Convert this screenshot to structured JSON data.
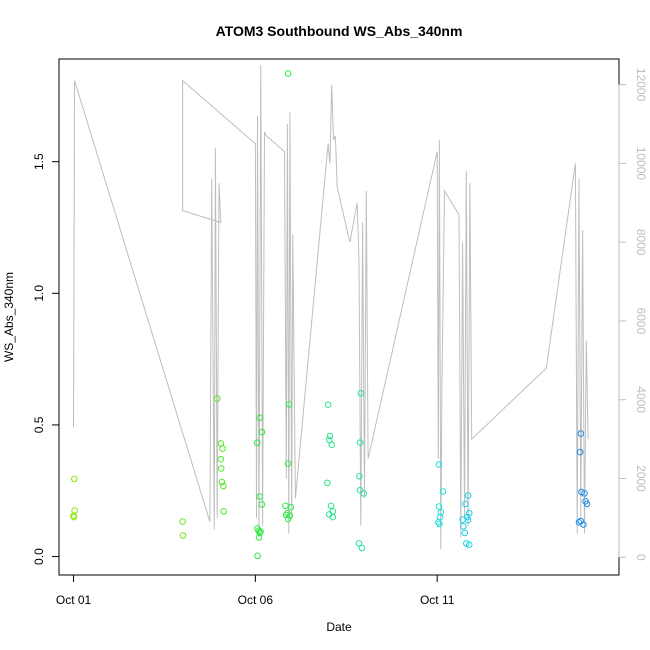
{
  "chart_data": {
    "type": "scatter",
    "title": "ATOM3 Southbound WS_Abs_340nm",
    "xlabel": "Date",
    "ylabel": "WS_Abs_340nm",
    "x_tick_labels": [
      "Oct 01",
      "Oct 06",
      "Oct 11"
    ],
    "x_tick_days": [
      1,
      6,
      11
    ],
    "xlim": [
      0.6,
      16.0
    ],
    "ylim": [
      -0.07,
      1.89
    ],
    "y_ticks": [
      0.0,
      0.5,
      1.0,
      1.5
    ],
    "y_tick_labels": [
      "0.0",
      "0.5",
      "1.0",
      "1.5"
    ],
    "y2lim": [
      -450,
      12650
    ],
    "y2_ticks": [
      0,
      2000,
      4000,
      6000,
      8000,
      10000,
      12000
    ],
    "y2_tick_labels": [
      "0",
      "2000",
      "4000",
      "6000",
      "8000",
      "10000",
      "12000"
    ],
    "colors": {
      "line": "#bebebe",
      "axis": "#000000",
      "right_axis": "#bebebe"
    },
    "points": [
      {
        "x": 1.02,
        "y": 0.295,
        "color": "#88e800"
      },
      {
        "x": 1.03,
        "y": 0.175,
        "color": "#88e800"
      },
      {
        "x": 1.0,
        "y": 0.155,
        "color": "#88e800"
      },
      {
        "x": 1.01,
        "y": 0.15,
        "color": "#88e800"
      },
      {
        "x": 4.0,
        "y": 0.133,
        "color": "#6fe61a"
      },
      {
        "x": 4.01,
        "y": 0.08,
        "color": "#6fe61a"
      },
      {
        "x": 4.95,
        "y": 0.6,
        "color": "#50e825"
      },
      {
        "x": 5.05,
        "y": 0.43,
        "color": "#50e825"
      },
      {
        "x": 5.1,
        "y": 0.41,
        "color": "#50e825"
      },
      {
        "x": 5.05,
        "y": 0.37,
        "color": "#50e825"
      },
      {
        "x": 5.06,
        "y": 0.335,
        "color": "#50e825"
      },
      {
        "x": 5.08,
        "y": 0.283,
        "color": "#50e825"
      },
      {
        "x": 5.12,
        "y": 0.268,
        "color": "#50e825"
      },
      {
        "x": 5.13,
        "y": 0.172,
        "color": "#50e825"
      },
      {
        "x": 6.05,
        "y": 0.432,
        "color": "#2fe842"
      },
      {
        "x": 6.12,
        "y": 0.527,
        "color": "#2fe842"
      },
      {
        "x": 6.18,
        "y": 0.473,
        "color": "#2fe842"
      },
      {
        "x": 6.12,
        "y": 0.228,
        "color": "#2fe842"
      },
      {
        "x": 6.18,
        "y": 0.198,
        "color": "#2fe842"
      },
      {
        "x": 6.06,
        "y": 0.107,
        "color": "#2fe842"
      },
      {
        "x": 6.09,
        "y": 0.098,
        "color": "#2fe842"
      },
      {
        "x": 6.12,
        "y": 0.09,
        "color": "#2fe842"
      },
      {
        "x": 6.14,
        "y": 0.095,
        "color": "#2fe842"
      },
      {
        "x": 6.1,
        "y": 0.073,
        "color": "#2fe842"
      },
      {
        "x": 6.06,
        "y": 0.003,
        "color": "#2fe842"
      },
      {
        "x": 6.9,
        "y": 1.835,
        "color": "#30e84e"
      },
      {
        "x": 6.93,
        "y": 0.578,
        "color": "#30e84e"
      },
      {
        "x": 6.9,
        "y": 0.353,
        "color": "#30e84e"
      },
      {
        "x": 6.83,
        "y": 0.193,
        "color": "#30e84e"
      },
      {
        "x": 6.98,
        "y": 0.188,
        "color": "#30e84e"
      },
      {
        "x": 6.88,
        "y": 0.165,
        "color": "#30e84e"
      },
      {
        "x": 6.85,
        "y": 0.158,
        "color": "#30e84e"
      },
      {
        "x": 6.95,
        "y": 0.155,
        "color": "#30e84e"
      },
      {
        "x": 6.9,
        "y": 0.143,
        "color": "#30e84e"
      },
      {
        "x": 8.0,
        "y": 0.577,
        "color": "#27e48a"
      },
      {
        "x": 8.05,
        "y": 0.458,
        "color": "#27e48a"
      },
      {
        "x": 8.03,
        "y": 0.443,
        "color": "#27e48a"
      },
      {
        "x": 8.1,
        "y": 0.425,
        "color": "#27e48a"
      },
      {
        "x": 7.98,
        "y": 0.28,
        "color": "#27e48a"
      },
      {
        "x": 8.08,
        "y": 0.193,
        "color": "#27e48a"
      },
      {
        "x": 8.13,
        "y": 0.172,
        "color": "#27e48a"
      },
      {
        "x": 8.03,
        "y": 0.16,
        "color": "#27e48a"
      },
      {
        "x": 8.13,
        "y": 0.15,
        "color": "#27e48a"
      },
      {
        "x": 8.9,
        "y": 0.62,
        "color": "#24e0a8"
      },
      {
        "x": 8.88,
        "y": 0.433,
        "color": "#24e0a8"
      },
      {
        "x": 8.86,
        "y": 0.305,
        "color": "#24e0a8"
      },
      {
        "x": 8.88,
        "y": 0.252,
        "color": "#24e0a8"
      },
      {
        "x": 8.98,
        "y": 0.24,
        "color": "#24e0a8"
      },
      {
        "x": 8.85,
        "y": 0.05,
        "color": "#24e0a8"
      },
      {
        "x": 8.93,
        "y": 0.033,
        "color": "#24e0a8"
      },
      {
        "x": 11.05,
        "y": 0.35,
        "color": "#1ae0d8"
      },
      {
        "x": 11.16,
        "y": 0.247,
        "color": "#1ae0d8"
      },
      {
        "x": 11.05,
        "y": 0.19,
        "color": "#1ae0d8"
      },
      {
        "x": 11.1,
        "y": 0.168,
        "color": "#1ae0d8"
      },
      {
        "x": 11.08,
        "y": 0.15,
        "color": "#1ae0d8"
      },
      {
        "x": 11.03,
        "y": 0.13,
        "color": "#1ae0d8"
      },
      {
        "x": 11.06,
        "y": 0.124,
        "color": "#1ae0d8"
      },
      {
        "x": 11.85,
        "y": 0.232,
        "color": "#1ad0e8"
      },
      {
        "x": 11.78,
        "y": 0.2,
        "color": "#1ad0e8"
      },
      {
        "x": 11.88,
        "y": 0.165,
        "color": "#1ad0e8"
      },
      {
        "x": 11.83,
        "y": 0.15,
        "color": "#1ad0e8"
      },
      {
        "x": 11.7,
        "y": 0.14,
        "color": "#1ad0e8"
      },
      {
        "x": 11.85,
        "y": 0.138,
        "color": "#1ad0e8"
      },
      {
        "x": 11.72,
        "y": 0.115,
        "color": "#1ad0e8"
      },
      {
        "x": 11.76,
        "y": 0.09,
        "color": "#1ad0e8"
      },
      {
        "x": 11.8,
        "y": 0.05,
        "color": "#1ad0e8"
      },
      {
        "x": 11.88,
        "y": 0.045,
        "color": "#1ad0e8"
      },
      {
        "x": 14.95,
        "y": 0.467,
        "color": "#1a8ce6"
      },
      {
        "x": 14.93,
        "y": 0.397,
        "color": "#1a8ce6"
      },
      {
        "x": 14.97,
        "y": 0.245,
        "color": "#1a8ce6"
      },
      {
        "x": 15.05,
        "y": 0.24,
        "color": "#1a8ce6"
      },
      {
        "x": 15.08,
        "y": 0.21,
        "color": "#1a8ce6"
      },
      {
        "x": 15.12,
        "y": 0.2,
        "color": "#1a8ce6"
      },
      {
        "x": 14.9,
        "y": 0.13,
        "color": "#1a8ce6"
      },
      {
        "x": 14.95,
        "y": 0.135,
        "color": "#1a8ce6"
      },
      {
        "x": 15.02,
        "y": 0.122,
        "color": "#1a8ce6"
      }
    ],
    "line_series": {
      "axis": "right",
      "points": [
        [
          1.0,
          4000
        ],
        [
          1.0,
          3300
        ],
        [
          1.03,
          12100
        ],
        [
          4.75,
          900
        ],
        [
          4.8,
          9600
        ],
        [
          4.87,
          700
        ],
        [
          4.9,
          10400
        ],
        [
          4.95,
          1000
        ],
        [
          5.0,
          9500
        ],
        [
          5.05,
          8500
        ],
        [
          4.0,
          8800
        ],
        [
          4.0,
          12100
        ],
        [
          6.0,
          10500
        ],
        [
          6.03,
          1000
        ],
        [
          6.06,
          11200
        ],
        [
          6.1,
          500
        ],
        [
          6.15,
          12500
        ],
        [
          6.2,
          800
        ],
        [
          6.25,
          10800
        ],
        [
          6.3,
          10700
        ],
        [
          6.8,
          10300
        ],
        [
          6.85,
          2000
        ],
        [
          6.88,
          11000
        ],
        [
          6.92,
          600
        ],
        [
          6.95,
          11300
        ],
        [
          7.0,
          1000
        ],
        [
          7.03,
          8200
        ],
        [
          7.1,
          1500
        ],
        [
          8.0,
          10500
        ],
        [
          8.05,
          10000
        ],
        [
          8.1,
          12000
        ],
        [
          8.15,
          10600
        ],
        [
          8.2,
          10700
        ],
        [
          8.25,
          9400
        ],
        [
          8.6,
          8000
        ],
        [
          8.8,
          9000
        ],
        [
          8.85,
          7500
        ],
        [
          8.9,
          800
        ],
        [
          8.95,
          8500
        ],
        [
          9.0,
          1500
        ],
        [
          9.05,
          9300
        ],
        [
          9.1,
          2500
        ],
        [
          11.0,
          10300
        ],
        [
          11.03,
          2500
        ],
        [
          11.06,
          10600
        ],
        [
          11.1,
          200
        ],
        [
          11.13,
          4300
        ],
        [
          11.2,
          9300
        ],
        [
          11.6,
          8700
        ],
        [
          11.65,
          500
        ],
        [
          11.7,
          8000
        ],
        [
          11.75,
          1000
        ],
        [
          11.8,
          9800
        ],
        [
          11.85,
          800
        ],
        [
          11.9,
          9500
        ],
        [
          11.95,
          3000
        ],
        [
          14.0,
          4800
        ],
        [
          14.8,
          10000
        ],
        [
          14.85,
          600
        ],
        [
          14.9,
          9600
        ],
        [
          14.95,
          1000
        ],
        [
          15.0,
          8300
        ],
        [
          15.05,
          600
        ],
        [
          15.1,
          5500
        ],
        [
          15.15,
          3000
        ]
      ]
    }
  }
}
